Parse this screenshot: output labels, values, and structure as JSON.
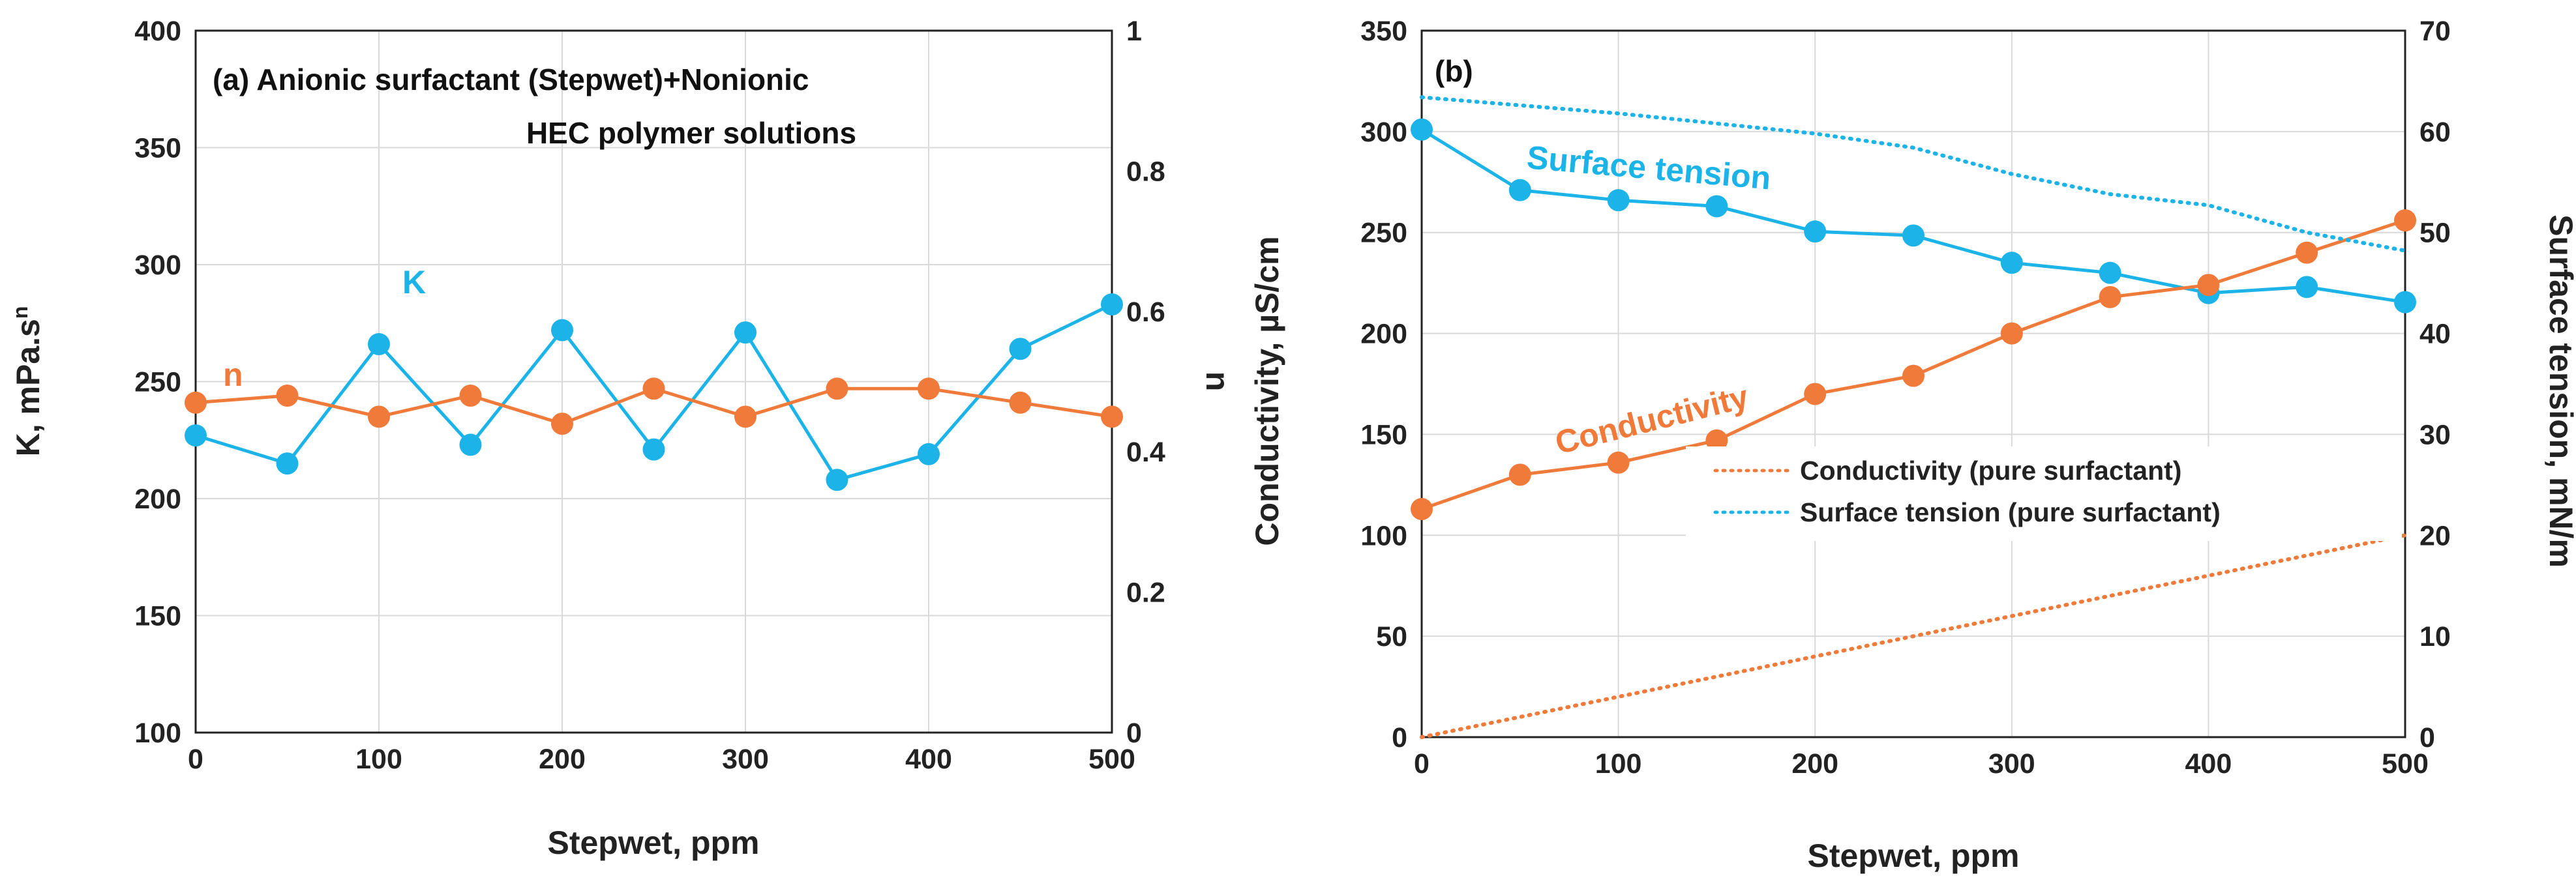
{
  "colors": {
    "orange": "#F07A3A",
    "blue": "#1BB3E8",
    "grid": "#D9D9D9",
    "frame": "#222222"
  },
  "chart_data": [
    {
      "type": "line",
      "title": "(a)  Anionic surfactant (Stepwet)+Nonionic",
      "title_line2": "HEC polymer solutions",
      "xlabel": "Stepwet, ppm",
      "ylabel": "K, mPa.s",
      "ylabel_sup": "n",
      "y2label": "n",
      "xlim": [
        0,
        500
      ],
      "ylim": [
        100,
        400
      ],
      "y2lim": [
        0,
        1
      ],
      "xticks": [
        "0",
        "100",
        "200",
        "300",
        "400",
        "500"
      ],
      "yticks": [
        "100",
        "150",
        "200",
        "250",
        "300",
        "350",
        "400"
      ],
      "y2ticks": [
        "0",
        "0.2",
        "0.4",
        "0.6",
        "0.8",
        "1"
      ],
      "series": [
        {
          "name": "K",
          "label": "K",
          "axis": "left",
          "color": "#1BB3E8",
          "x": [
            0,
            50,
            100,
            150,
            200,
            250,
            300,
            350,
            400,
            450,
            500
          ],
          "values": [
            227,
            215,
            266,
            223,
            272,
            221,
            271,
            208,
            219,
            264,
            283
          ]
        },
        {
          "name": "n",
          "label": "n",
          "axis": "right",
          "color": "#F07A3A",
          "x": [
            0,
            50,
            100,
            150,
            200,
            250,
            300,
            350,
            400,
            450,
            500
          ],
          "values": [
            0.47,
            0.48,
            0.45,
            0.48,
            0.44,
            0.49,
            0.45,
            0.49,
            0.49,
            0.47,
            0.45
          ]
        }
      ]
    },
    {
      "type": "line",
      "title": "(b)",
      "xlabel": "Stepwet, ppm",
      "ylabel": "Conductivity, µS/cm",
      "y2label": "Surface tension, mN/m",
      "xlim": [
        0,
        500
      ],
      "ylim": [
        0,
        350
      ],
      "y2lim": [
        0,
        70
      ],
      "xticks": [
        "0",
        "100",
        "200",
        "300",
        "400",
        "500"
      ],
      "yticks": [
        "0",
        "50",
        "100",
        "150",
        "200",
        "250",
        "300",
        "350"
      ],
      "y2ticks": [
        "0",
        "10",
        "20",
        "30",
        "40",
        "50",
        "60",
        "70"
      ],
      "series": [
        {
          "name": "Surface tension",
          "label": "Surface tension",
          "axis": "right",
          "color": "#1BB3E8",
          "x": [
            0,
            50,
            100,
            150,
            200,
            250,
            300,
            350,
            400,
            450,
            500
          ],
          "values": [
            60.2,
            54.2,
            53.2,
            52.6,
            50.1,
            49.7,
            47.0,
            46.0,
            44.0,
            44.6,
            43.1
          ]
        },
        {
          "name": "Conductivity",
          "label": "Conductivity",
          "axis": "left",
          "color": "#F07A3A",
          "x": [
            0,
            50,
            100,
            150,
            200,
            250,
            300,
            350,
            400,
            450,
            500
          ],
          "values": [
            113,
            130,
            136,
            147,
            170,
            179,
            200,
            218,
            224,
            240,
            256
          ]
        },
        {
          "name": "Conductivity (pure surfactant)",
          "axis": "left",
          "style": "dotted",
          "color": "#F07A3A",
          "x": [
            0,
            500
          ],
          "values": [
            0,
            100
          ]
        },
        {
          "name": "Surface tension (pure surfactant)",
          "axis": "right",
          "style": "dotted",
          "color": "#1BB3E8",
          "x": [
            0,
            50,
            100,
            150,
            200,
            250,
            300,
            350,
            400,
            450,
            500
          ],
          "values": [
            63.4,
            62.6,
            61.8,
            60.8,
            59.8,
            58.4,
            55.8,
            53.8,
            52.7,
            50.0,
            48.2
          ]
        }
      ],
      "legend": [
        "Conductivity (pure surfactant)",
        "Surface tension (pure surfactant)"
      ]
    }
  ]
}
